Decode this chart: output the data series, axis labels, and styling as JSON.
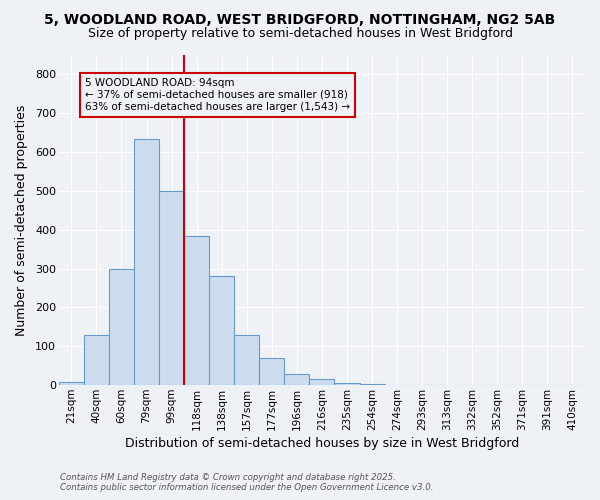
{
  "title1": "5, WOODLAND ROAD, WEST BRIDGFORD, NOTTINGHAM, NG2 5AB",
  "title2": "Size of property relative to semi-detached houses in West Bridgford",
  "xlabel": "Distribution of semi-detached houses by size in West Bridgford",
  "ylabel": "Number of semi-detached properties",
  "categories": [
    "21sqm",
    "40sqm",
    "60sqm",
    "79sqm",
    "99sqm",
    "118sqm",
    "138sqm",
    "157sqm",
    "177sqm",
    "196sqm",
    "216sqm",
    "235sqm",
    "254sqm",
    "274sqm",
    "293sqm",
    "313sqm",
    "332sqm",
    "352sqm",
    "371sqm",
    "391sqm",
    "410sqm"
  ],
  "values": [
    8,
    130,
    300,
    635,
    500,
    385,
    280,
    130,
    70,
    30,
    15,
    5,
    3,
    1,
    0,
    0,
    0,
    0,
    0,
    0,
    0
  ],
  "bar_color": "#ccdcee",
  "bar_edge_color": "#6699cc",
  "property_line_x": 4.5,
  "annotation_title": "5 WOODLAND ROAD: 94sqm",
  "annotation_line1": "← 37% of semi-detached houses are smaller (918)",
  "annotation_line2": "63% of semi-detached houses are larger (1,543) →",
  "red_line_color": "#cc0000",
  "ylim": [
    0,
    850
  ],
  "yticks": [
    0,
    100,
    200,
    300,
    400,
    500,
    600,
    700,
    800
  ],
  "footer1": "Contains HM Land Registry data © Crown copyright and database right 2025.",
  "footer2": "Contains public sector information licensed under the Open Government Licence v3.0.",
  "background_color": "#eef2f7",
  "plot_bg_color": "#eef2f7",
  "grid_color": "#ffffff"
}
